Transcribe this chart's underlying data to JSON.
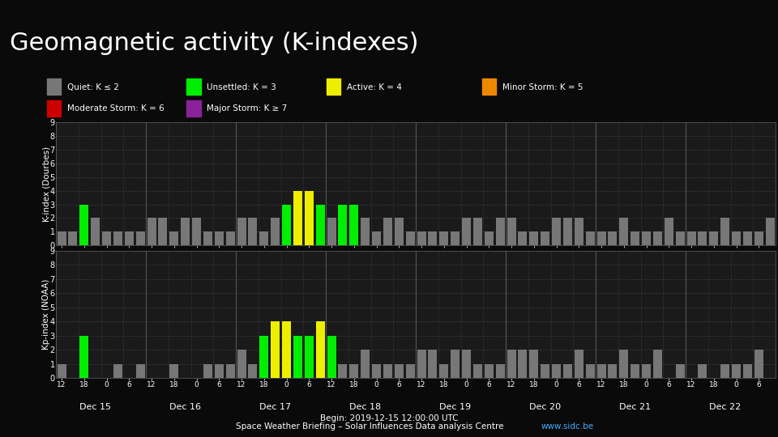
{
  "title": "Geomagnetic activity (K-indexes)",
  "title_bg": "#00bfff",
  "bg_color": "#0a0a0a",
  "plot_bg": "#1a1a1a",
  "grid_color": "#3a3a4a",
  "text_color": "#ffffff",
  "subtitle": "Begin: 2019-12-15 12:00:00 UTC",
  "footer_text": "Space Weather Briefing – Solar Influences Data analysis Centre",
  "footer_url": "www.sidc.be",
  "footer_url_color": "#44aaff",
  "ylabel_top": "K-index (Dourbes)",
  "ylabel_bot": "Kp-index (NOAA)",
  "color_quiet": "#777777",
  "color_unsettled": "#00ee00",
  "color_active": "#eeee00",
  "color_minor": "#ee8800",
  "color_moderate": "#cc0000",
  "color_major": "#882299",
  "legend_row1": [
    {
      "label": "Quiet: K ≤ 2",
      "color": "#777777"
    },
    {
      "label": "Unsettled: K = 3",
      "color": "#00ee00"
    },
    {
      "label": "Active: K = 4",
      "color": "#eeee00"
    },
    {
      "label": "Minor Storm: K = 5",
      "color": "#ee8800"
    }
  ],
  "legend_row2": [
    {
      "label": "Moderate Storm: K = 6",
      "color": "#cc0000"
    },
    {
      "label": "Major Storm: K ≥ 7",
      "color": "#882299"
    }
  ],
  "k_dourbes": [
    1,
    1,
    3,
    2,
    1,
    1,
    1,
    1,
    2,
    2,
    1,
    2,
    2,
    1,
    1,
    1,
    2,
    2,
    1,
    2,
    3,
    4,
    4,
    3,
    2,
    3,
    3,
    2,
    1,
    2,
    2,
    1,
    1,
    1,
    1,
    1,
    2,
    2,
    1,
    2,
    2,
    1,
    1,
    1,
    2,
    2,
    2,
    1,
    1,
    1,
    2,
    1,
    1,
    1,
    2,
    1,
    1,
    1,
    1,
    2,
    1,
    1,
    1,
    2
  ],
  "kp_noaa": [
    1,
    0,
    3,
    0,
    0,
    1,
    0,
    1,
    0,
    0,
    1,
    0,
    0,
    1,
    1,
    1,
    2,
    1,
    3,
    4,
    4,
    3,
    3,
    4,
    3,
    1,
    1,
    2,
    1,
    1,
    1,
    1,
    2,
    2,
    1,
    2,
    2,
    1,
    1,
    1,
    2,
    2,
    2,
    1,
    1,
    1,
    2,
    1,
    1,
    1,
    2,
    1,
    1,
    2,
    0,
    1,
    0,
    1,
    0,
    1,
    1,
    1,
    2,
    0
  ],
  "n_bars": 64,
  "bars_per_day": 8,
  "day_labels": [
    "Dec 15",
    "Dec 16",
    "Dec 17",
    "Dec 18",
    "Dec 19",
    "Dec 20",
    "Dec 21",
    "Dec 22"
  ],
  "time_tick_labels": [
    "12",
    "18",
    "0",
    "6",
    "12",
    "18",
    "0",
    "6",
    "12",
    "18",
    "0",
    "6",
    "12",
    "18",
    "0",
    "6",
    "12",
    "18",
    "0",
    "6",
    "12",
    "18",
    "0",
    "6",
    "12",
    "18",
    "0",
    "6",
    "12",
    "18",
    "0",
    "6"
  ]
}
